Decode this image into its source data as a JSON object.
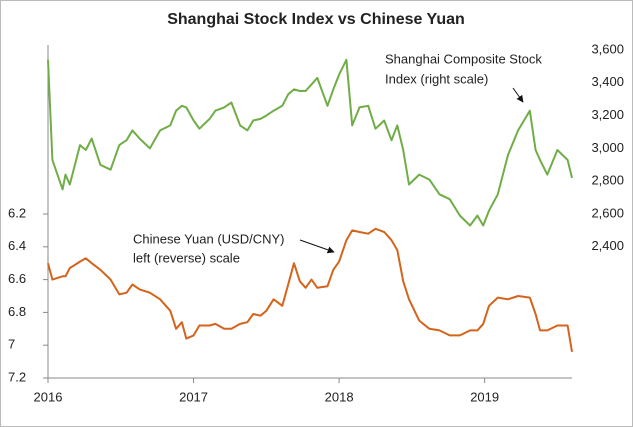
{
  "chart_data": {
    "type": "line",
    "title": "Shanghai Stock Index vs Chinese Yuan",
    "x": [
      2016,
      2016.03,
      2016.1,
      2016.12,
      2016.15,
      2016.22,
      2016.26,
      2016.3,
      2016.36,
      2016.43,
      2016.49,
      2016.54,
      2016.58,
      2016.63,
      2016.7,
      2016.77,
      2016.84,
      2016.88,
      2016.92,
      2016.95,
      2017.0,
      2017.04,
      2017.11,
      2017.15,
      2017.21,
      2017.26,
      2017.32,
      2017.37,
      2017.41,
      2017.46,
      2017.5,
      2017.55,
      2017.61,
      2017.65,
      2017.69,
      2017.73,
      2017.77,
      2017.81,
      2017.85,
      2017.92,
      2017.96,
      2018.0,
      2018.05,
      2018.09,
      2018.14,
      2018.2,
      2018.25,
      2018.31,
      2018.36,
      2018.4,
      2018.44,
      2018.48,
      2018.55,
      2018.62,
      2018.69,
      2018.76,
      2018.83,
      2018.9,
      2018.95,
      2018.99,
      2019.03,
      2019.09,
      2019.16,
      2019.23,
      2019.31,
      2019.35,
      2019.38,
      2019.43,
      2019.5,
      2019.57,
      2019.6
    ],
    "xlim": [
      2016,
      2019.6
    ],
    "xticks": [
      2016,
      2017,
      2018,
      2019
    ],
    "ylim": [
      5.2,
      7.2
    ],
    "y_reversed": true,
    "yticks": [
      6.2,
      6.4,
      6.6,
      6.8,
      7,
      7.2
    ],
    "y2lim": [
      1600,
      3600
    ],
    "y2ticks": [
      {
        "value": 2400,
        "label": "2,400"
      },
      {
        "value": 2600,
        "label": "2,600"
      },
      {
        "value": 2800,
        "label": "2,800"
      },
      {
        "value": 3000,
        "label": "3,000"
      },
      {
        "value": 3200,
        "label": "3,200"
      },
      {
        "value": 3400,
        "label": "3,400"
      },
      {
        "value": 3600,
        "label": "3,600"
      }
    ],
    "series": [
      {
        "name": "Shanghai Composite Stock Index",
        "color": "#70ad47",
        "axis": "y2",
        "values": [
          3540,
          2930,
          2750,
          2840,
          2780,
          3020,
          2990,
          3060,
          2900,
          2870,
          3020,
          3050,
          3110,
          3060,
          3000,
          3110,
          3140,
          3230,
          3260,
          3250,
          3170,
          3120,
          3180,
          3230,
          3250,
          3280,
          3140,
          3110,
          3170,
          3180,
          3200,
          3230,
          3260,
          3330,
          3360,
          3350,
          3350,
          3390,
          3430,
          3260,
          3360,
          3450,
          3540,
          3140,
          3250,
          3260,
          3120,
          3170,
          3050,
          3140,
          2990,
          2780,
          2840,
          2810,
          2720,
          2690,
          2590,
          2530,
          2590,
          2530,
          2620,
          2720,
          2960,
          3110,
          3230,
          2990,
          2930,
          2840,
          2990,
          2930,
          2820
        ]
      },
      {
        "name": "Chinese Yuan (USD/CNY)",
        "color": "#d4641b",
        "axis": "y",
        "values": [
          6.5,
          6.6,
          6.58,
          6.58,
          6.53,
          6.49,
          6.47,
          6.5,
          6.54,
          6.6,
          6.69,
          6.68,
          6.63,
          6.66,
          6.68,
          6.72,
          6.79,
          6.9,
          6.86,
          6.96,
          6.94,
          6.88,
          6.88,
          6.87,
          6.9,
          6.9,
          6.87,
          6.86,
          6.81,
          6.82,
          6.79,
          6.72,
          6.76,
          6.63,
          6.5,
          6.61,
          6.65,
          6.6,
          6.65,
          6.64,
          6.54,
          6.49,
          6.36,
          6.3,
          6.31,
          6.32,
          6.29,
          6.31,
          6.36,
          6.42,
          6.61,
          6.72,
          6.85,
          6.9,
          6.91,
          6.94,
          6.94,
          6.91,
          6.91,
          6.87,
          6.76,
          6.71,
          6.72,
          6.7,
          6.71,
          6.81,
          6.91,
          6.91,
          6.88,
          6.88,
          7.04
        ]
      }
    ],
    "annotations": [
      {
        "lines": [
          "Shanghai Composite Stock",
          "Index (right scale)"
        ]
      },
      {
        "lines": [
          "Chinese Yuan (USD/CNY)",
          "left (reverse) scale"
        ]
      }
    ]
  }
}
